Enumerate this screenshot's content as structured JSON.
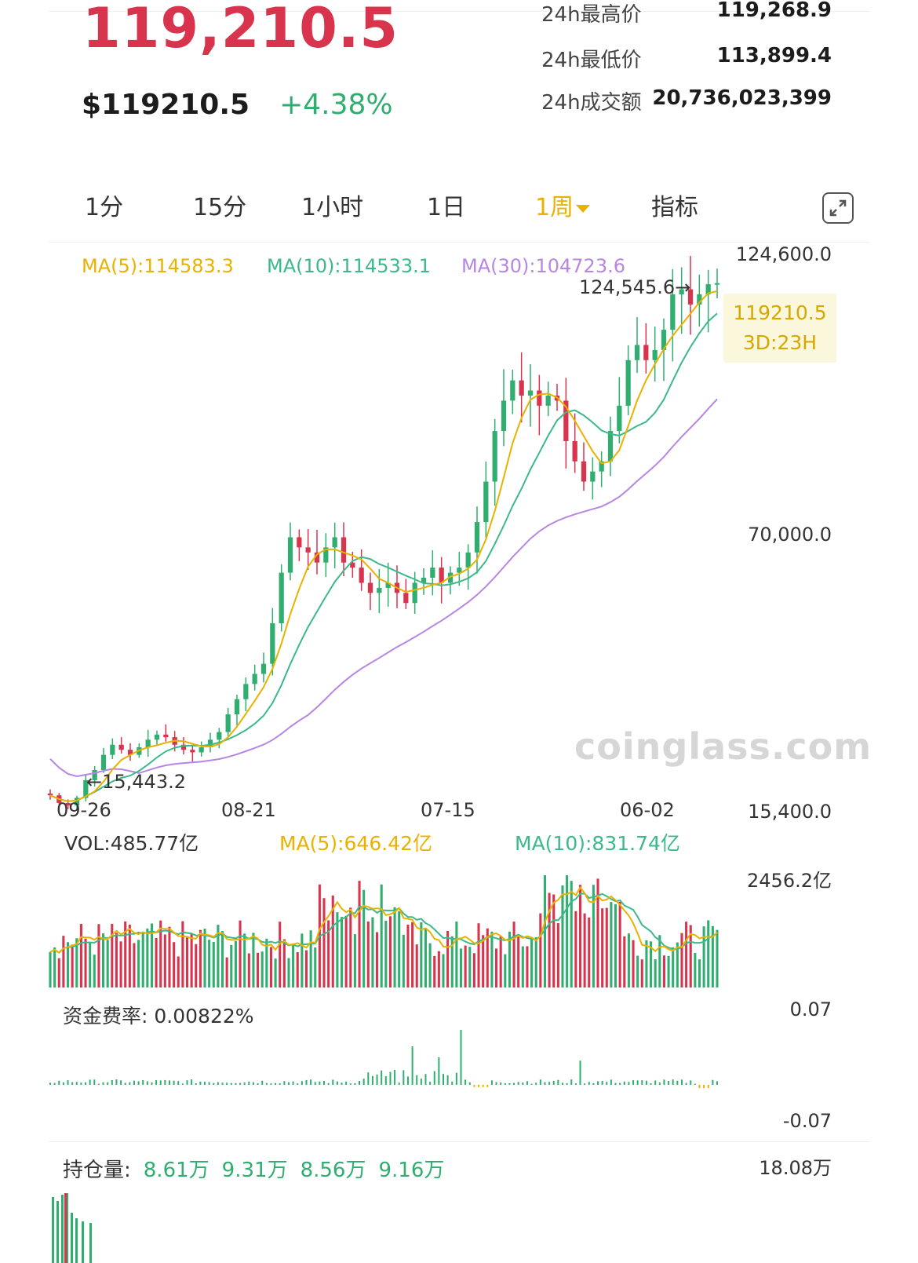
{
  "header": {
    "price": "119,210.5",
    "usd_price": "$119210.5",
    "change_pct": "+4.38%",
    "stats": [
      {
        "label": "24h最高价",
        "value": "119,268.9"
      },
      {
        "label": "24h最低价",
        "value": "113,899.4"
      },
      {
        "label": "24h成交额",
        "value": "20,736,023,399"
      }
    ]
  },
  "timeframes": {
    "items": [
      "1分",
      "15分",
      "1小时",
      "1日",
      "1周",
      "指标"
    ],
    "active_index": 4
  },
  "icons": {
    "fullscreen": "fullscreen-icon",
    "dropdown": "caret-down-icon"
  },
  "colors": {
    "up": "#2fae70",
    "down": "#d8344e",
    "ma5": "#e9b200",
    "ma10": "#3cb98a",
    "ma30": "#b786e3"
  },
  "price_chart": {
    "ma5": "MA(5):114583.3",
    "ma10": "MA(10):114533.1",
    "ma30": "MA(30):104723.6",
    "y_top": "124,600.0",
    "y_mid": "70,000.0",
    "y_bottom": "15,400.0",
    "high_marker": "124,545.6→",
    "low_marker": "←15,443.2",
    "current_price": "119210.5",
    "countdown": "3D:23H",
    "x_labels": [
      "09-26",
      "08-21",
      "07-15",
      "06-02"
    ],
    "watermark": "coinglass.com"
  },
  "volume_panel": {
    "vol": "VOL:485.77亿",
    "ma5": "MA(5):646.42亿",
    "ma10": "MA(10):831.74亿",
    "y_top": "2456.2亿"
  },
  "funding_panel": {
    "label": "资金费率: 0.00822%",
    "y_top": "0.07",
    "y_bottom": "-0.07"
  },
  "oi_panel": {
    "label": "持仓量:",
    "values": [
      "8.61万",
      "9.31万",
      "8.56万",
      "9.16万"
    ],
    "y_top": "18.08万"
  },
  "chart_data": [
    {
      "type": "line",
      "title": "",
      "x_tick_labels": [
        "09-26",
        "08-21",
        "07-15",
        "06-02"
      ],
      "ylim": [
        15400,
        124600
      ],
      "y_ticks": [
        124600,
        70000,
        15400
      ],
      "series": [
        {
          "name": "MA(5)",
          "last": 114583.3
        },
        {
          "name": "MA(10)",
          "last": 114533.1
        },
        {
          "name": "MA(30)",
          "last": 104723.6
        }
      ],
      "close_series_approx": [
        18000,
        16500,
        16000,
        17500,
        21000,
        23000,
        26000,
        28000,
        27000,
        26000,
        27500,
        29000,
        30000,
        29500,
        28000,
        27000,
        26500,
        27500,
        29000,
        30500,
        34000,
        37000,
        40000,
        42000,
        44000,
        52000,
        62000,
        69000,
        67000,
        66000,
        64000,
        67000,
        69000,
        64000,
        63000,
        60000,
        58000,
        59000,
        60000,
        58000,
        56000,
        60000,
        61000,
        63000,
        60000,
        62000,
        63000,
        66000,
        72000,
        80000,
        90000,
        96000,
        100000,
        97000,
        98000,
        95000,
        97000,
        96000,
        88000,
        84000,
        80000,
        82000,
        84000,
        90000,
        95000,
        104000,
        107000,
        104000,
        106000,
        110000,
        117000,
        118000,
        115000,
        117000,
        119000,
        119210.5
      ],
      "annotations": {
        "high": 124545.6,
        "low": 15443.2,
        "current": 119210.5
      }
    },
    {
      "type": "bar",
      "title": "",
      "name": "VOL",
      "ylim": [
        0,
        2456.2
      ],
      "unit": "亿",
      "last": 485.77,
      "ma5": 646.42,
      "ma10": 831.74
    },
    {
      "type": "bar",
      "title": "",
      "name": "资金费率",
      "ylim": [
        -0.07,
        0.07
      ],
      "last": 0.00822
    }
  ]
}
